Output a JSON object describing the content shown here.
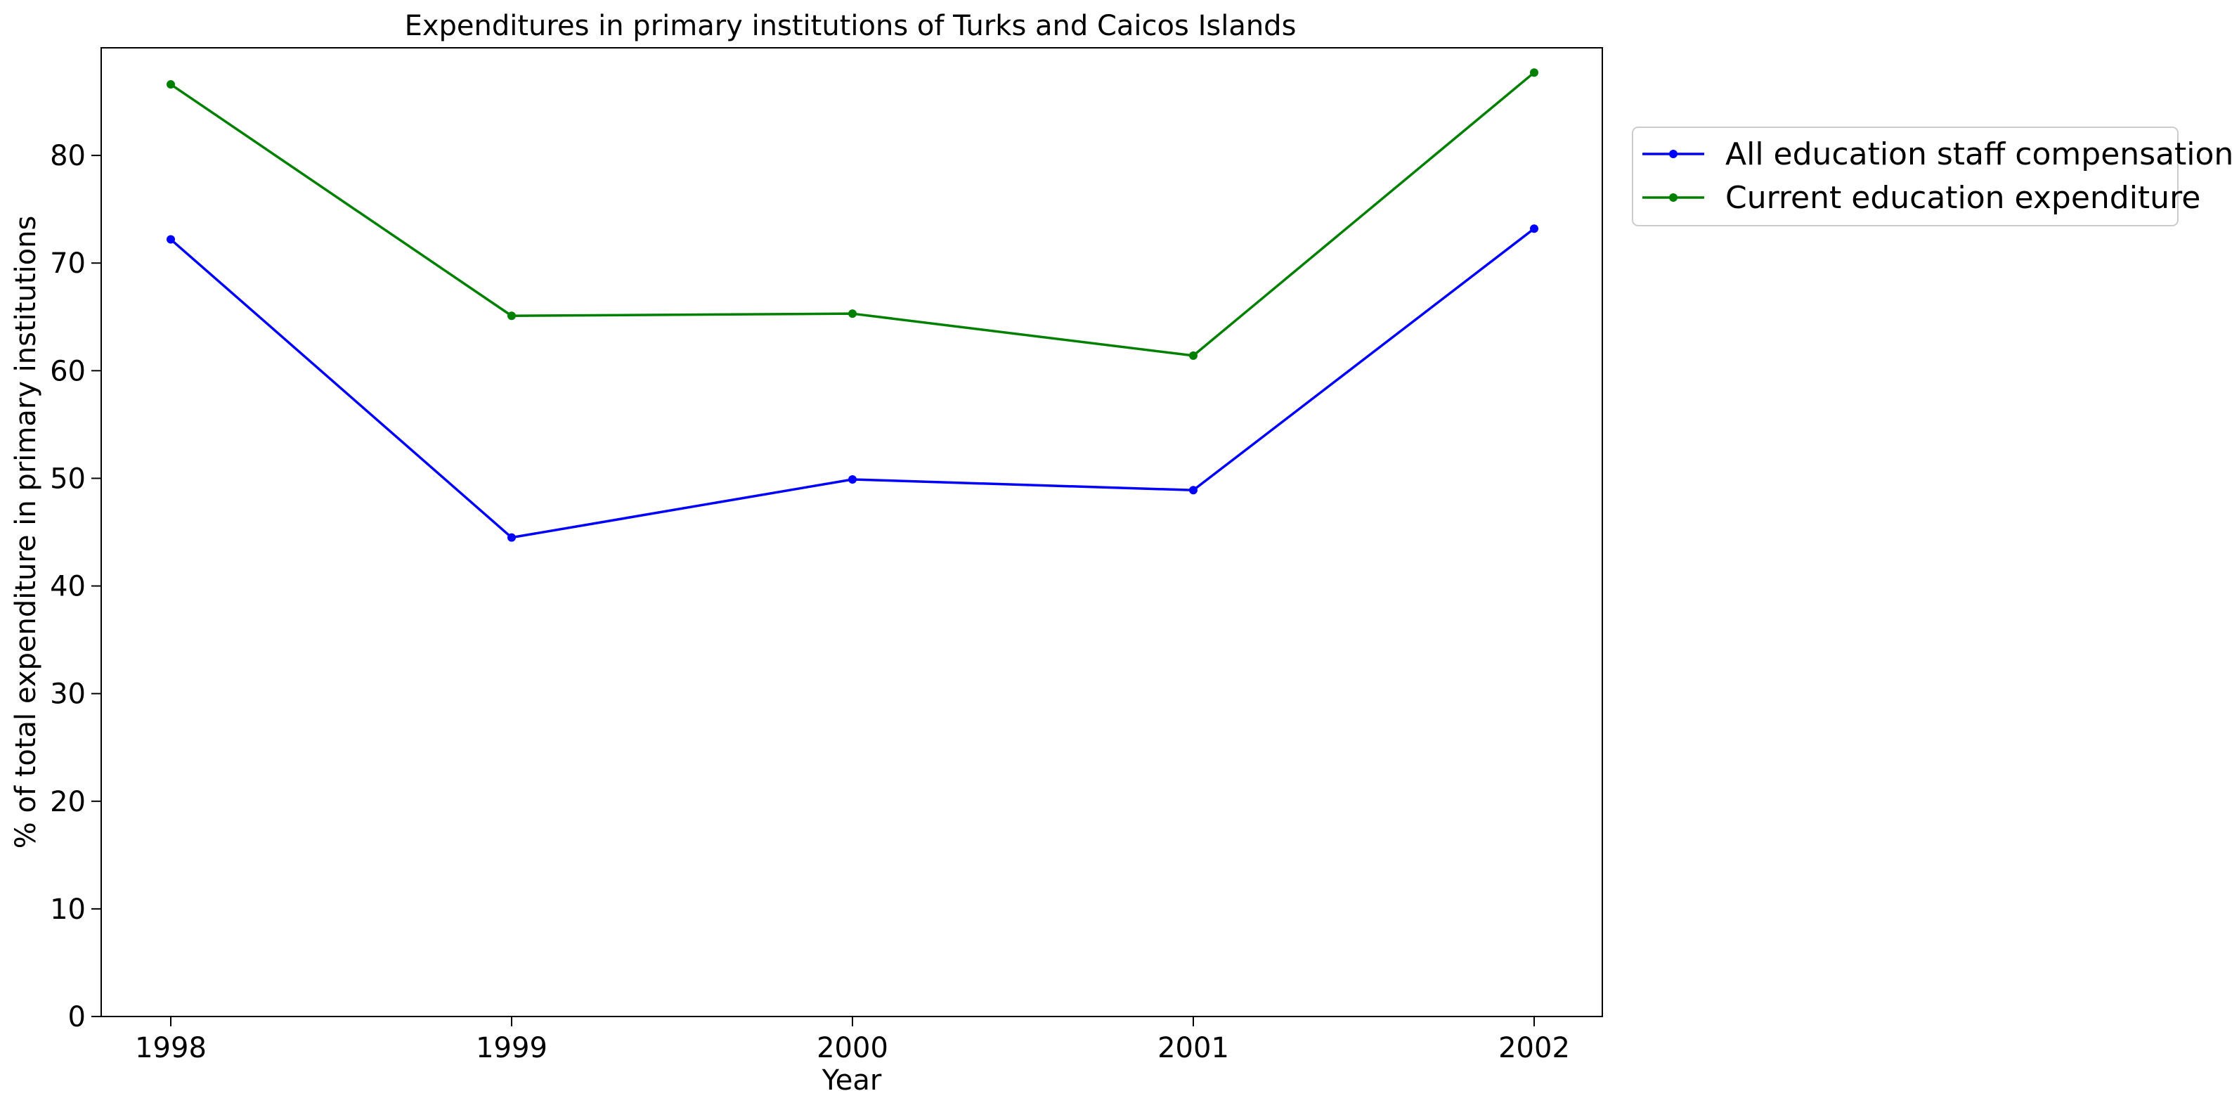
{
  "chart_data": {
    "type": "line",
    "title": "Expenditures in primary institutions of Turks and Caicos Islands",
    "xlabel": "Year",
    "ylabel": "% of total expenditure in primary institutions",
    "categories": [
      "1998",
      "1999",
      "2000",
      "2001",
      "2002"
    ],
    "y_ticks": [
      0,
      10,
      20,
      30,
      40,
      50,
      60,
      70,
      80
    ],
    "ylim": [
      0,
      90
    ],
    "grid": false,
    "legend_position": "outside-right-top",
    "series": [
      {
        "name": "All education staff compensation",
        "color": "#0000ff",
        "values": [
          72.2,
          44.5,
          49.9,
          48.9,
          73.2
        ]
      },
      {
        "name": "Current education expenditure",
        "color": "#008000",
        "values": [
          86.6,
          65.1,
          65.3,
          61.4,
          87.7
        ]
      }
    ]
  }
}
